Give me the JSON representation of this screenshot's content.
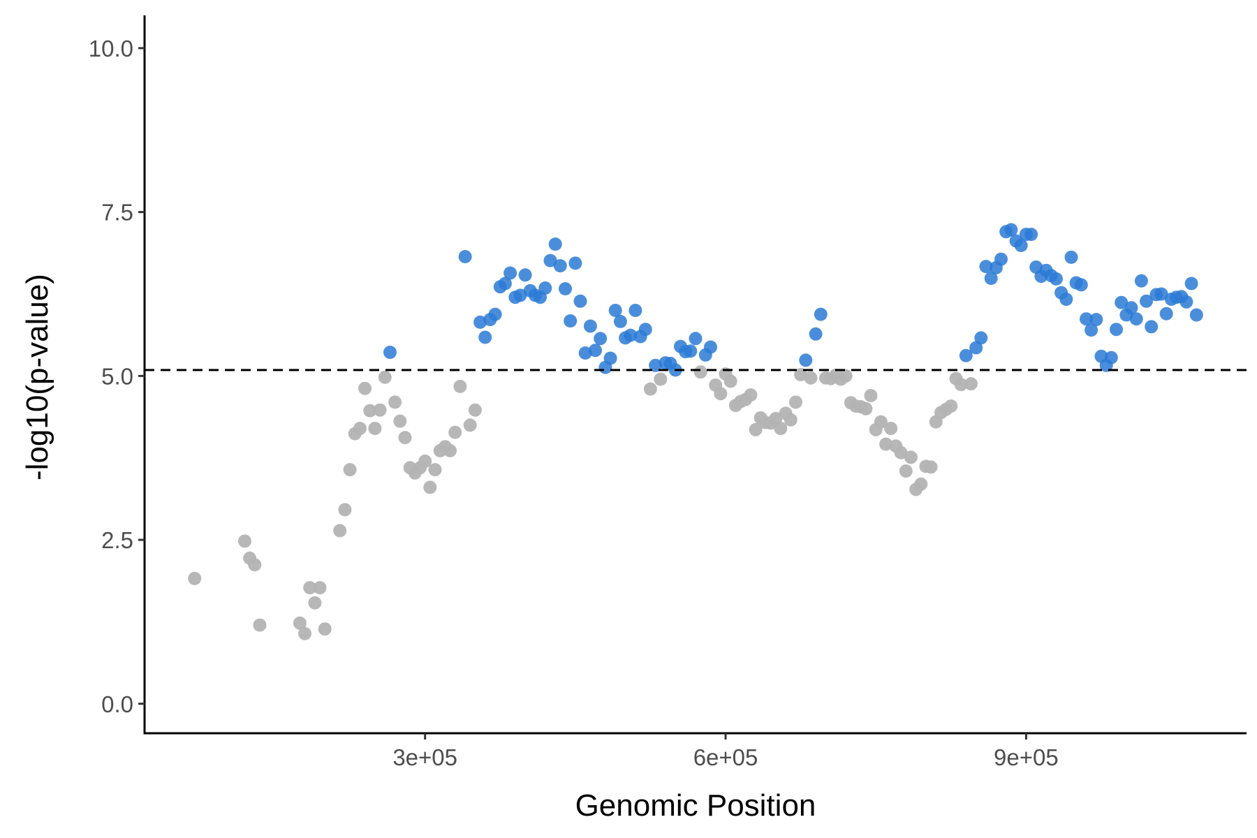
{
  "chart_data": {
    "type": "scatter",
    "title": "",
    "xlabel": "Genomic Position",
    "ylabel": "-log10(p-value)",
    "xlim": [
      20000,
      1120000
    ],
    "ylim": [
      -0.45,
      10.5
    ],
    "x_ticks": [
      300000,
      600000,
      900000
    ],
    "x_tick_labels": [
      "3e+05",
      "6e+05",
      "9e+05"
    ],
    "y_ticks": [
      0.0,
      2.5,
      5.0,
      7.5,
      10.0
    ],
    "y_tick_labels": [
      "0.0",
      "2.5",
      "5.0",
      "7.5",
      "10.0"
    ],
    "threshold": 5.09,
    "grid": false,
    "colors": {
      "significant": "#2a7ad5",
      "not_significant": "#b3b3b3",
      "threshold_line": "#000000"
    },
    "points": [
      [
        70000,
        1.91
      ],
      [
        120000,
        2.48
      ],
      [
        125000,
        2.22
      ],
      [
        130000,
        2.12
      ],
      [
        135000,
        1.2
      ],
      [
        175000,
        1.23
      ],
      [
        180000,
        1.07
      ],
      [
        185000,
        1.77
      ],
      [
        190000,
        1.54
      ],
      [
        195000,
        1.77
      ],
      [
        200000,
        1.14
      ],
      [
        215000,
        2.64
      ],
      [
        220000,
        2.96
      ],
      [
        225000,
        3.57
      ],
      [
        230000,
        4.12
      ],
      [
        235000,
        4.2
      ],
      [
        240000,
        4.81
      ],
      [
        245000,
        4.47
      ],
      [
        250000,
        4.2
      ],
      [
        255000,
        4.48
      ],
      [
        260000,
        4.98
      ],
      [
        265000,
        5.36
      ],
      [
        270000,
        4.6
      ],
      [
        275000,
        4.31
      ],
      [
        280000,
        4.06
      ],
      [
        285000,
        3.6
      ],
      [
        290000,
        3.52
      ],
      [
        295000,
        3.6
      ],
      [
        300000,
        3.7
      ],
      [
        305000,
        3.3
      ],
      [
        310000,
        3.57
      ],
      [
        315000,
        3.86
      ],
      [
        320000,
        3.92
      ],
      [
        325000,
        3.86
      ],
      [
        330000,
        4.14
      ],
      [
        335000,
        4.84
      ],
      [
        340000,
        6.82
      ],
      [
        345000,
        4.25
      ],
      [
        350000,
        4.48
      ],
      [
        355000,
        5.82
      ],
      [
        360000,
        5.59
      ],
      [
        365000,
        5.86
      ],
      [
        370000,
        5.94
      ],
      [
        375000,
        6.36
      ],
      [
        380000,
        6.41
      ],
      [
        385000,
        6.57
      ],
      [
        390000,
        6.2
      ],
      [
        395000,
        6.23
      ],
      [
        400000,
        6.54
      ],
      [
        405000,
        6.3
      ],
      [
        410000,
        6.23
      ],
      [
        415000,
        6.2
      ],
      [
        420000,
        6.34
      ],
      [
        425000,
        6.76
      ],
      [
        430000,
        7.01
      ],
      [
        435000,
        6.68
      ],
      [
        440000,
        6.33
      ],
      [
        445000,
        5.84
      ],
      [
        450000,
        6.72
      ],
      [
        455000,
        6.14
      ],
      [
        460000,
        5.35
      ],
      [
        465000,
        5.76
      ],
      [
        470000,
        5.39
      ],
      [
        475000,
        5.57
      ],
      [
        480000,
        5.13
      ],
      [
        485000,
        5.27
      ],
      [
        490000,
        6.0
      ],
      [
        495000,
        5.83
      ],
      [
        500000,
        5.58
      ],
      [
        505000,
        5.62
      ],
      [
        510000,
        6.0
      ],
      [
        515000,
        5.6
      ],
      [
        520000,
        5.71
      ],
      [
        525000,
        4.8
      ],
      [
        530000,
        5.16
      ],
      [
        535000,
        4.95
      ],
      [
        540000,
        5.2
      ],
      [
        545000,
        5.19
      ],
      [
        550000,
        5.09
      ],
      [
        555000,
        5.45
      ],
      [
        560000,
        5.37
      ],
      [
        565000,
        5.38
      ],
      [
        570000,
        5.57
      ],
      [
        575000,
        5.06
      ],
      [
        580000,
        5.32
      ],
      [
        585000,
        5.44
      ],
      [
        590000,
        4.86
      ],
      [
        595000,
        4.73
      ],
      [
        600000,
        5.03
      ],
      [
        605000,
        4.92
      ],
      [
        610000,
        4.55
      ],
      [
        615000,
        4.61
      ],
      [
        620000,
        4.64
      ],
      [
        625000,
        4.71
      ],
      [
        630000,
        4.18
      ],
      [
        635000,
        4.36
      ],
      [
        640000,
        4.29
      ],
      [
        645000,
        4.28
      ],
      [
        650000,
        4.35
      ],
      [
        655000,
        4.2
      ],
      [
        660000,
        4.43
      ],
      [
        665000,
        4.33
      ],
      [
        670000,
        4.6
      ],
      [
        675000,
        5.02
      ],
      [
        680000,
        5.24
      ],
      [
        685000,
        4.97
      ],
      [
        690000,
        5.64
      ],
      [
        695000,
        5.94
      ],
      [
        700000,
        4.97
      ],
      [
        705000,
        4.96
      ],
      [
        710000,
        5.01
      ],
      [
        715000,
        4.95
      ],
      [
        720000,
        5.0
      ],
      [
        725000,
        4.59
      ],
      [
        730000,
        4.54
      ],
      [
        735000,
        4.53
      ],
      [
        740000,
        4.5
      ],
      [
        745000,
        4.7
      ],
      [
        750000,
        4.18
      ],
      [
        755000,
        4.3
      ],
      [
        760000,
        3.96
      ],
      [
        765000,
        4.2
      ],
      [
        770000,
        3.93
      ],
      [
        775000,
        3.83
      ],
      [
        780000,
        3.55
      ],
      [
        785000,
        3.76
      ],
      [
        790000,
        3.27
      ],
      [
        795000,
        3.35
      ],
      [
        800000,
        3.62
      ],
      [
        805000,
        3.61
      ],
      [
        810000,
        4.3
      ],
      [
        815000,
        4.44
      ],
      [
        820000,
        4.49
      ],
      [
        825000,
        4.54
      ],
      [
        830000,
        4.96
      ],
      [
        835000,
        4.87
      ],
      [
        840000,
        5.31
      ],
      [
        845000,
        4.88
      ],
      [
        850000,
        5.43
      ],
      [
        855000,
        5.58
      ],
      [
        860000,
        6.67
      ],
      [
        865000,
        6.49
      ],
      [
        870000,
        6.65
      ],
      [
        875000,
        6.78
      ],
      [
        880000,
        7.2
      ],
      [
        885000,
        7.23
      ],
      [
        890000,
        7.06
      ],
      [
        895000,
        6.99
      ],
      [
        900000,
        7.16
      ],
      [
        905000,
        7.16
      ],
      [
        910000,
        6.66
      ],
      [
        915000,
        6.52
      ],
      [
        920000,
        6.61
      ],
      [
        925000,
        6.53
      ],
      [
        930000,
        6.48
      ],
      [
        935000,
        6.27
      ],
      [
        940000,
        6.17
      ],
      [
        945000,
        6.81
      ],
      [
        950000,
        6.42
      ],
      [
        955000,
        6.39
      ],
      [
        960000,
        5.87
      ],
      [
        965000,
        5.7
      ],
      [
        970000,
        5.86
      ],
      [
        975000,
        5.3
      ],
      [
        980000,
        5.16
      ],
      [
        985000,
        5.28
      ],
      [
        990000,
        5.71
      ],
      [
        995000,
        6.12
      ],
      [
        1000000,
        5.93
      ],
      [
        1005000,
        6.04
      ],
      [
        1010000,
        5.87
      ],
      [
        1015000,
        6.45
      ],
      [
        1020000,
        6.14
      ],
      [
        1025000,
        5.75
      ],
      [
        1030000,
        6.24
      ],
      [
        1035000,
        6.25
      ],
      [
        1040000,
        5.95
      ],
      [
        1045000,
        6.17
      ],
      [
        1050000,
        6.2
      ],
      [
        1055000,
        6.21
      ],
      [
        1060000,
        6.13
      ],
      [
        1065000,
        6.41
      ],
      [
        1070000,
        5.93
      ]
    ]
  }
}
